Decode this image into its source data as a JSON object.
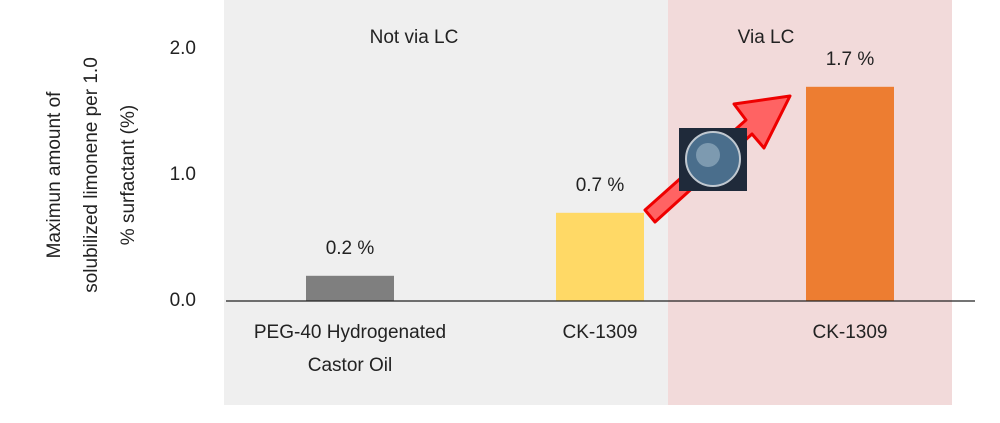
{
  "chart_data": {
    "type": "bar",
    "y_label": [
      "Maximun amount of",
      "solubilized limonene per 1.0",
      "% surfactant (%)"
    ],
    "annotations": [
      "Not via LC",
      "Via LC"
    ],
    "categories": [
      "PEG-40 Hydrogenated Castor Oil",
      "CK-1309",
      "CK-1309"
    ],
    "values": [
      0.2,
      0.7,
      1.7
    ],
    "value_labels": [
      "0.2 %",
      "0.7 %",
      "1.7 %"
    ],
    "colors": [
      "#7f7f7f",
      "#ffd966",
      "#ed7d31"
    ],
    "ylim": [
      0,
      2.0
    ],
    "yticks": [
      {
        "value": 0,
        "label": "0.0"
      },
      {
        "value": 1.0,
        "label": "1.0"
      },
      {
        "value": 2.0,
        "label": "2.0"
      }
    ]
  }
}
